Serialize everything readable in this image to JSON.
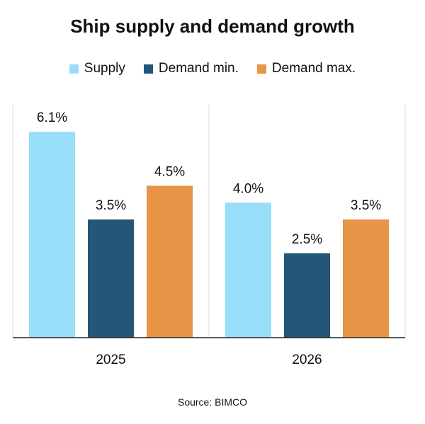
{
  "chart_data": {
    "type": "bar",
    "title": "Ship supply and demand growth",
    "categories": [
      "2025",
      "2026"
    ],
    "series": [
      {
        "name": "Supply",
        "values": [
          6.1,
          4.0
        ],
        "labels": [
          "6.1%",
          "4.0%"
        ],
        "color": "#99DEF8"
      },
      {
        "name": "Demand min.",
        "values": [
          3.5,
          2.5
        ],
        "labels": [
          "3.5%",
          "2.5%"
        ],
        "color": "#245677"
      },
      {
        "name": "Demand max.",
        "values": [
          4.5,
          3.5
        ],
        "labels": [
          "4.5%",
          "3.5%"
        ],
        "color": "#E69446"
      }
    ],
    "ylim": [
      0,
      6.9
    ],
    "grid": false,
    "legend_position": "top",
    "source": "Source: BIMCO"
  }
}
